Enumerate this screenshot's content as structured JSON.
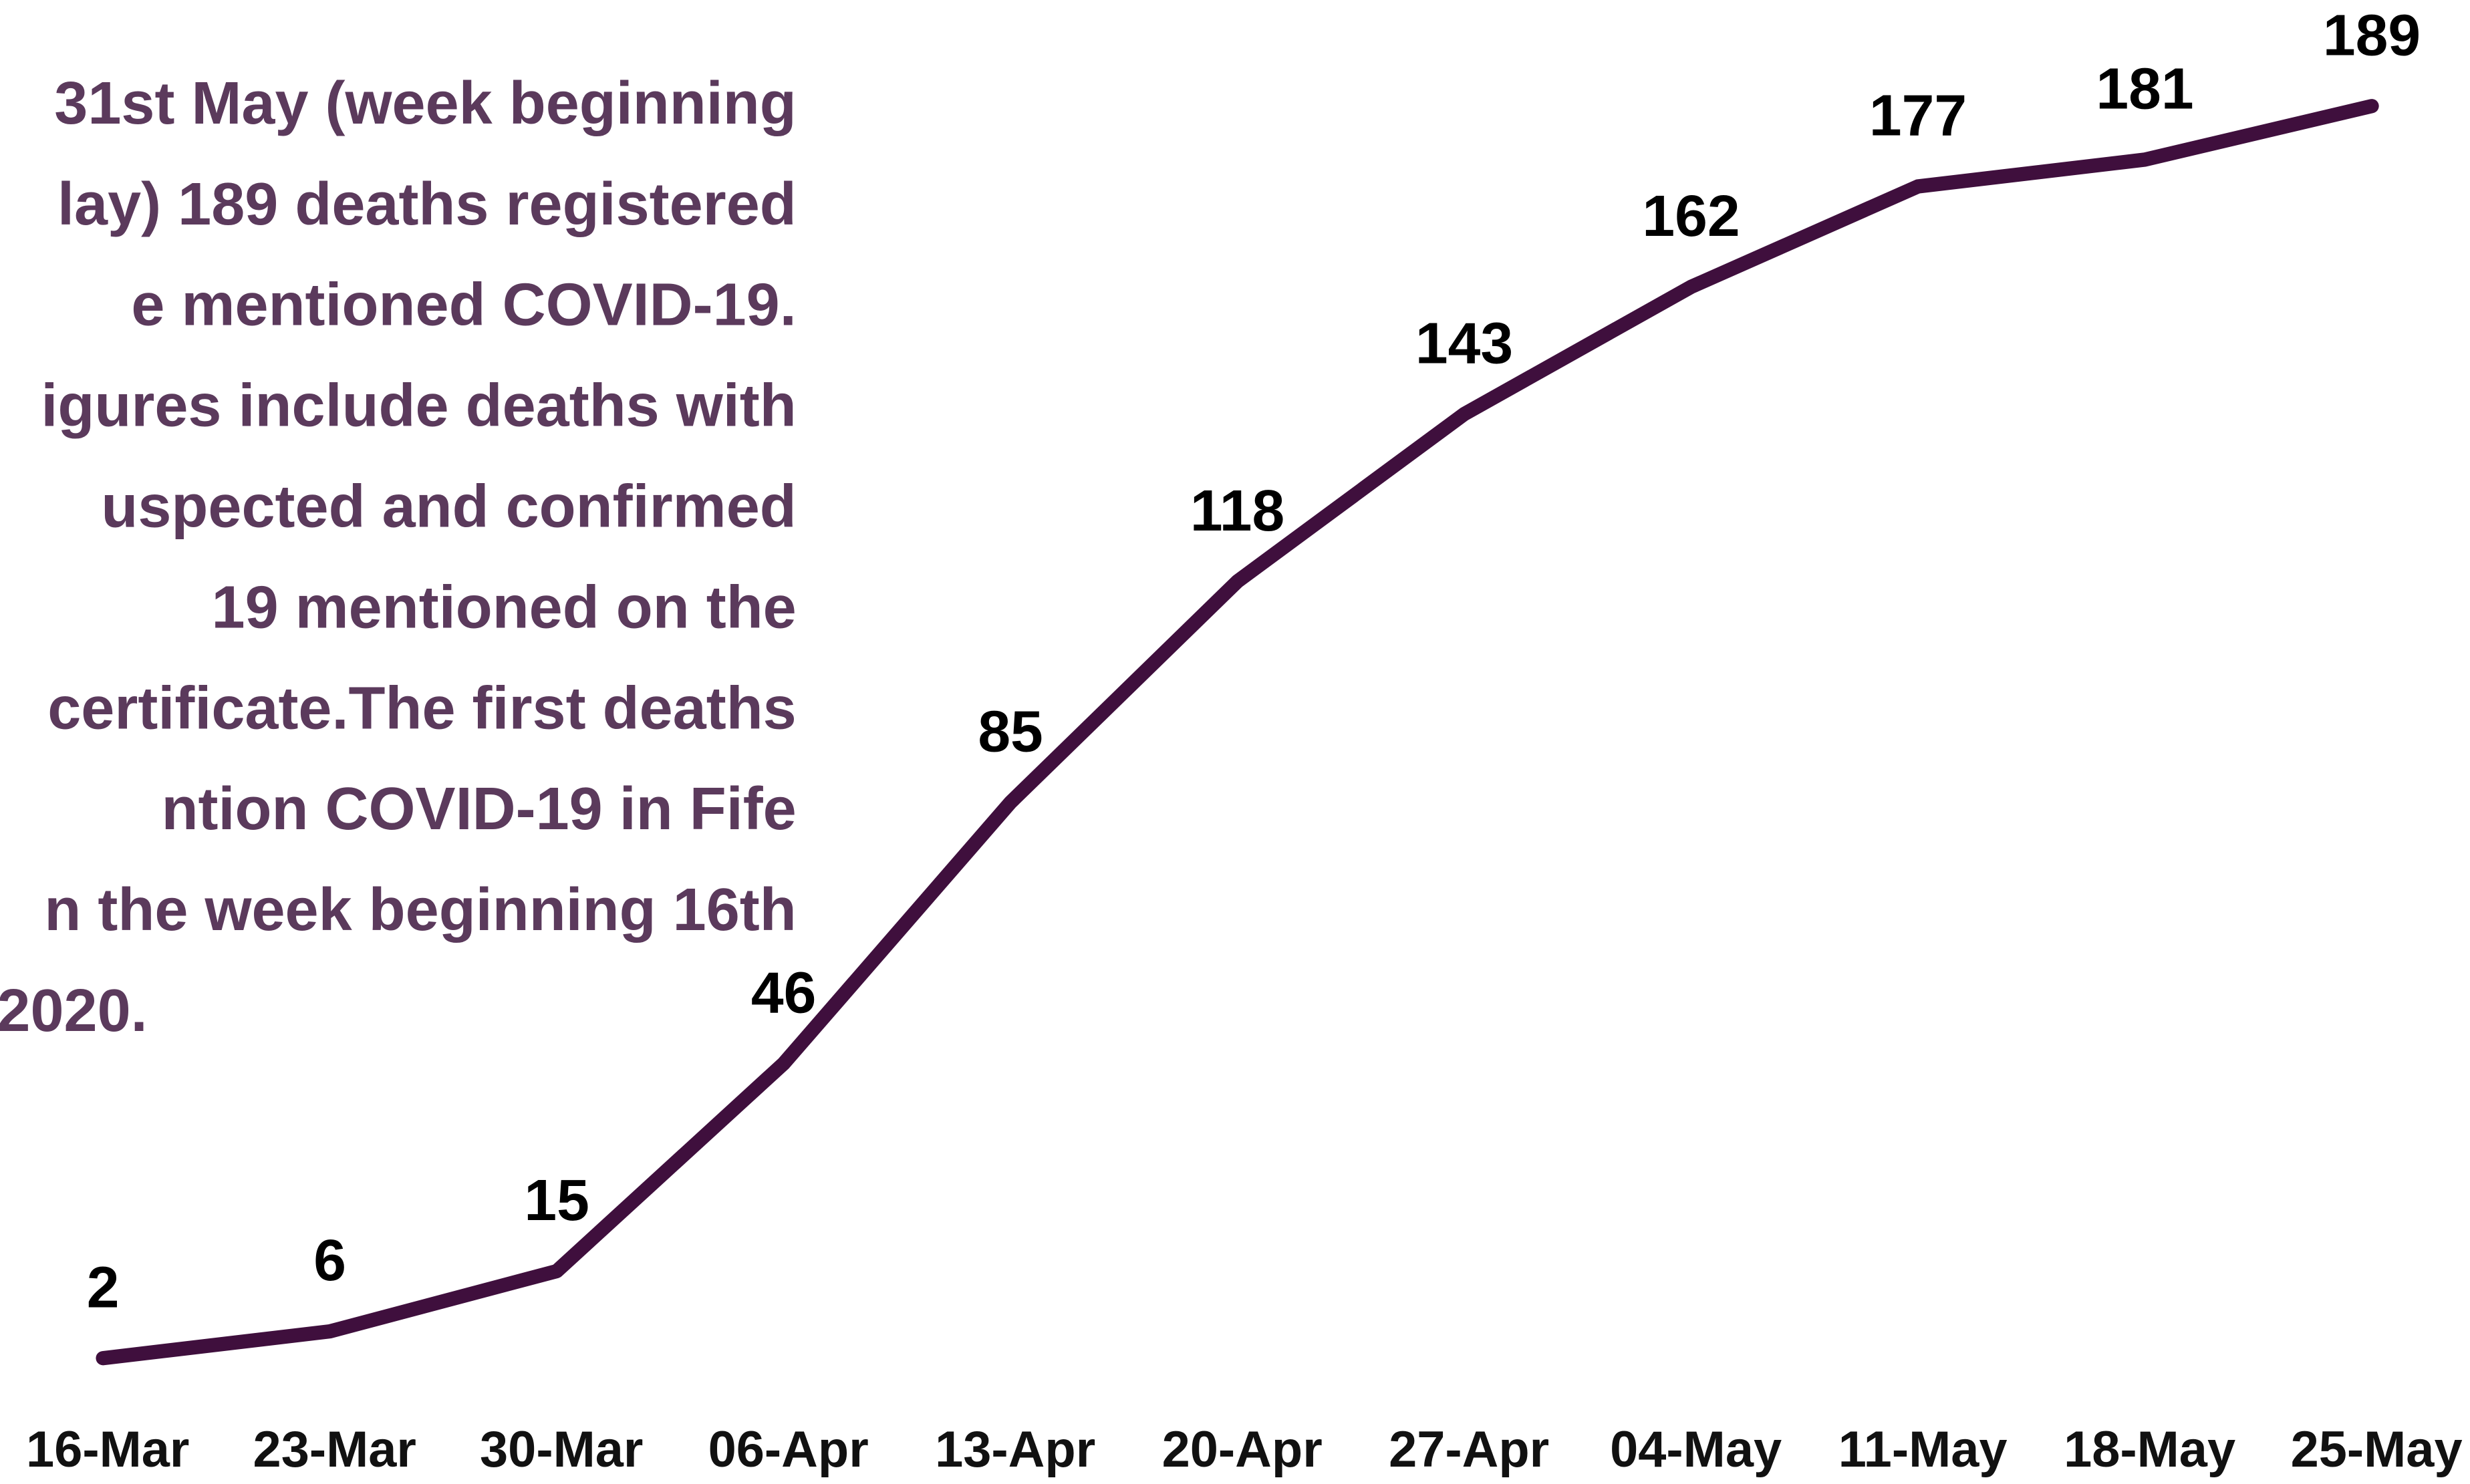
{
  "chart_data": {
    "type": "line",
    "annotation_lines": [
      "31st May (week beginning",
      "lay) 189 deaths registered",
      "e mentioned COVID-19.",
      "igures include deaths with",
      "uspected and confirmed",
      "19 mentioned on the",
      "certificate.The first deaths",
      "ntion COVID-19 in Fife",
      "n the week beginning 16th",
      "2020."
    ],
    "categories": [
      "16-Mar",
      "23-Mar",
      "30-Mar",
      "06-Apr",
      "13-Apr",
      "20-Apr",
      "27-Apr",
      "04-May",
      "11-May",
      "18-May",
      "25-May"
    ],
    "values": [
      2,
      6,
      15,
      46,
      85,
      118,
      143,
      162,
      177,
      181,
      189
    ],
    "color": "#3f0f3d"
  }
}
